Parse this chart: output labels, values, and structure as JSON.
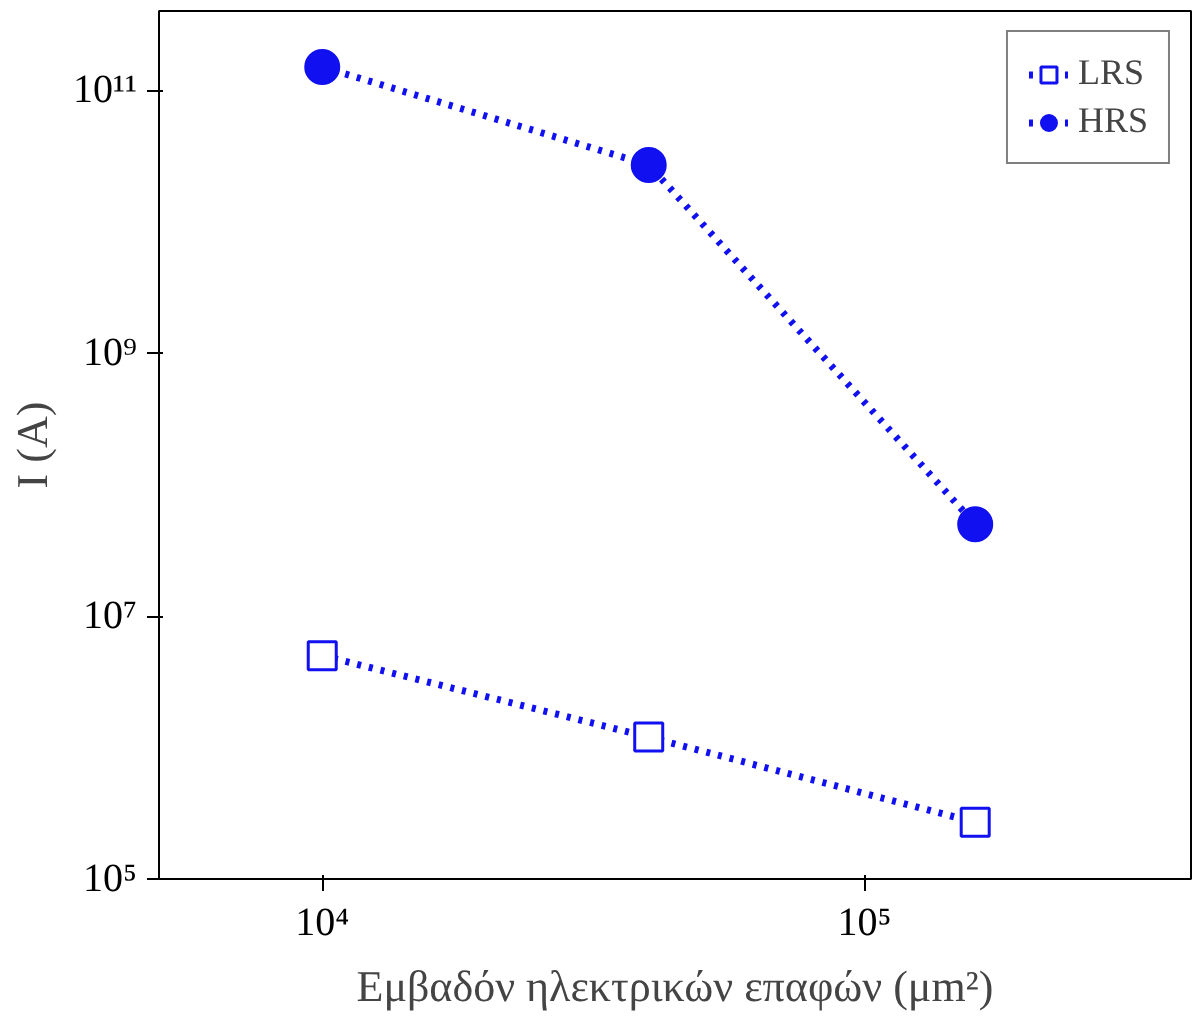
{
  "chart_data": {
    "type": "line",
    "xlabel": "Εμβαδόν ηλεκτρικών επαφών (μm²)",
    "ylabel": "I (A)",
    "log": "xy",
    "xlim": [
      5000,
      400000
    ],
    "ylim": [
      100000,
      400000000000
    ],
    "xticks": [
      {
        "value": 10000,
        "label": "10⁴"
      },
      {
        "value": 100000,
        "label": "10⁵"
      }
    ],
    "yticks": [
      {
        "value": 100000,
        "label": "10⁵"
      },
      {
        "value": 10000000,
        "label": "10⁷"
      },
      {
        "value": 1000000000,
        "label": "10⁹"
      },
      {
        "value": 100000000000,
        "label": "10¹¹"
      }
    ],
    "grid": false,
    "legend": "top right",
    "line_style": "dotted",
    "series": [
      {
        "name": "LRS",
        "color": "#1010f0",
        "marker": "square",
        "x": [
          10000,
          40000,
          160000
        ],
        "values": [
          5000000,
          1200000,
          270000
        ]
      },
      {
        "name": "HRS",
        "color": "#1010f0",
        "marker": "circle",
        "x": [
          10000,
          40000,
          160000
        ],
        "values": [
          150000000000,
          27000000000,
          50000000
        ]
      }
    ]
  }
}
